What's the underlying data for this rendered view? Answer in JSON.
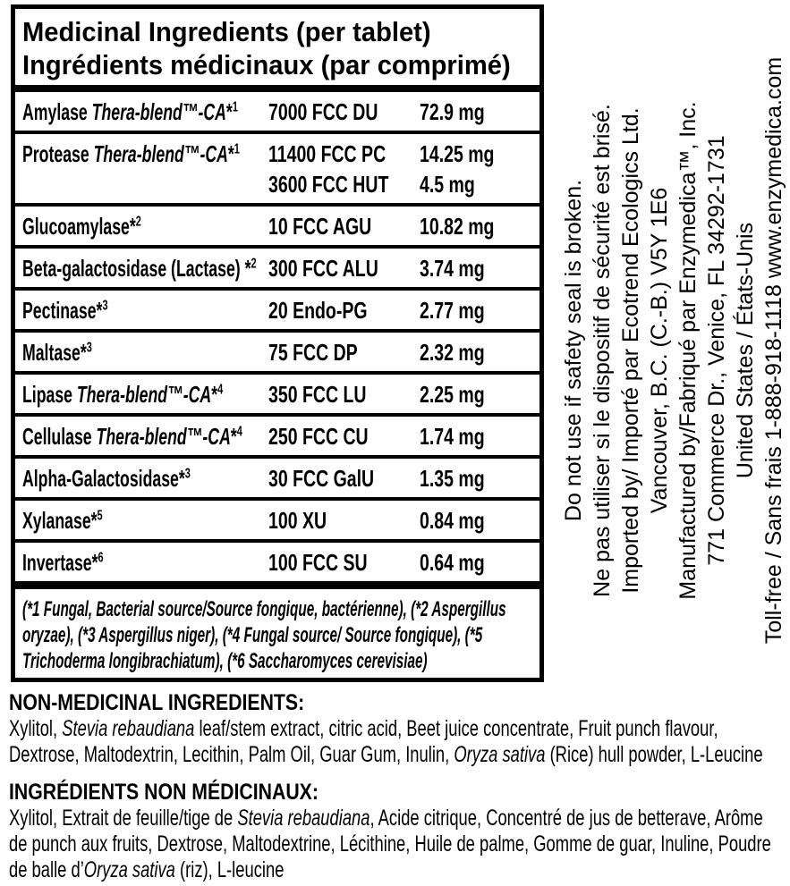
{
  "label": {
    "title_en": "Medicinal Ingredients (per tablet)",
    "title_fr": "Ingrédients médicinaux (par comprimé)",
    "rows": [
      {
        "plain": "Amylase ",
        "italic": "Thera-blend™-CA",
        "star": "*",
        "sup": "1",
        "activity": "7000 FCC DU",
        "amount": "72.9 mg"
      },
      {
        "plain": "Protease ",
        "italic": "Thera-blend™-CA",
        "star": "*",
        "sup": "1",
        "activity": "11400 FCC PC",
        "amount": "14.25 mg",
        "activity2": "3600 FCC HUT",
        "amount2": "4.5 mg"
      },
      {
        "plain": "Glucoamylase",
        "italic": "",
        "star": "*",
        "sup": "2",
        "activity": "10 FCC AGU",
        "amount": "10.82 mg"
      },
      {
        "plain": "Beta-galactosidase (Lactase) ",
        "italic": "",
        "star": "*",
        "sup": "2",
        "activity": "300 FCC ALU",
        "amount": "3.74 mg"
      },
      {
        "plain": "Pectinase",
        "italic": "",
        "star": "*",
        "sup": "3",
        "activity": "20 Endo-PG",
        "amount": "2.77 mg"
      },
      {
        "plain": "Maltase",
        "italic": "",
        "star": "*",
        "sup": "3",
        "activity": "75 FCC DP",
        "amount": "2.32 mg"
      },
      {
        "plain": "Lipase ",
        "italic": "Thera-blend™-CA",
        "star": "*",
        "sup": "4",
        "activity": "350 FCC LU",
        "amount": "2.25 mg"
      },
      {
        "plain": "Cellulase ",
        "italic": "Thera-blend™-CA",
        "star": "*",
        "sup": "4",
        "activity": "250 FCC CU",
        "amount": "1.74 mg"
      },
      {
        "plain": "Alpha-Galactosidase",
        "italic": "",
        "star": "*",
        "sup": "3",
        "activity": "30 FCC GalU",
        "amount": "1.35 mg"
      },
      {
        "plain": "Xylanase",
        "italic": "",
        "star": "*",
        "sup": "5",
        "activity": "100 XU",
        "amount": "0.84 mg"
      },
      {
        "plain": "Invertase",
        "italic": "",
        "star": "*",
        "sup": "6",
        "activity": "100 FCC SU",
        "amount": "0.64 mg"
      }
    ],
    "footnote": "(*1 Fungal, Bacterial source/Source fongique, bactérienne), (*2 Aspergillus oryzae), (*3 Aspergillus niger), (*4 Fungal source/ Source fongique), (*5 Trichoderma longibrachiatum), (*6 Saccharomyces cerevisiae)"
  },
  "non_medicinal_en": {
    "heading": "NON-MEDICINAL INGREDIENTS:",
    "part1": "Xylitol, ",
    "italic1": "Stevia rebaudiana",
    "part2": " leaf/stem extract, citric acid, Beet juice concentrate, Fruit punch flavour, Dextrose, Maltodextrin, Lecithin, Palm Oil, Guar Gum, Inulin, ",
    "italic2": "Oryza sativa",
    "part3": " (Rice) hull powder, L-Leucine"
  },
  "non_medicinal_fr": {
    "heading": "INGRÉDIENTS NON MÉDICINAUX:",
    "part1": "Xylitol, Extrait de feuille/tige de ",
    "italic1": "Stevia rebaudiana",
    "part2": ", Acide citrique, Concentré de jus de betterave, Arôme de punch aux fruits, Dextrose, Maltodextrine, Lécithine, Huile de palme, Gomme de guar, Inuline, Poudre de balle d’",
    "italic2": "Oryza sativa",
    "part3": " (riz), L-leucine"
  },
  "side_panel": {
    "lines": [
      "Do not use if safety seal is broken.",
      "Ne pas utiliser si le dispositif de sécurité est brisé.",
      "Imported by/ Importé par Ecotrend Ecologics Ltd.",
      "Vancouver, B.C. (C.-B.) V5Y 1E6",
      "Manufactured by/Fabriqué par Enzymedica™, Inc.",
      "771 Commerce Dr., Venice, FL 34292-1731",
      "United States / États-Unis",
      "Toll-free / Sans frais 1-888-918-1118 www.enzymedica.com"
    ]
  }
}
